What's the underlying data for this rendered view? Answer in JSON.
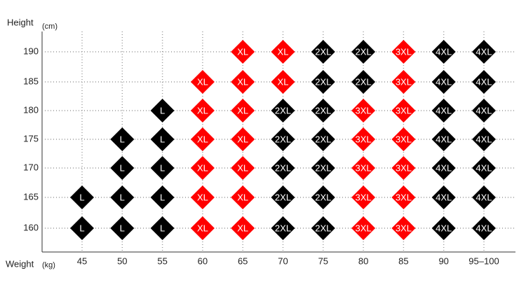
{
  "chart_data": {
    "type": "matrix",
    "y_label": "Height",
    "y_unit": "(cm)",
    "x_label": "Weight",
    "x_unit": "(kg)",
    "x": [
      "45",
      "50",
      "55",
      "60",
      "65",
      "70",
      "75",
      "80",
      "85",
      "90",
      "95–100"
    ],
    "y": [
      "190",
      "185",
      "180",
      "175",
      "170",
      "165",
      "160"
    ],
    "cells": [
      [
        null,
        null,
        null,
        null,
        "XL",
        "XL",
        "2XL",
        "2XL",
        "3XL",
        "4XL",
        "4XL"
      ],
      [
        null,
        null,
        null,
        "XL",
        "XL",
        "XL",
        "2XL",
        "2XL",
        "3XL",
        "4XL",
        "4XL"
      ],
      [
        null,
        null,
        "L",
        "XL",
        "XL",
        "2XL",
        "2XL",
        "3XL",
        "3XL",
        "4XL",
        "4XL"
      ],
      [
        null,
        "L",
        "L",
        "XL",
        "XL",
        "2XL",
        "2XL",
        "3XL",
        "3XL",
        "4XL",
        "4XL"
      ],
      [
        null,
        "L",
        "L",
        "XL",
        "XL",
        "2XL",
        "2XL",
        "3XL",
        "3XL",
        "4XL",
        "4XL"
      ],
      [
        "L",
        "L",
        "L",
        "XL",
        "XL",
        "2XL",
        "2XL",
        "3XL",
        "3XL",
        "4XL",
        "4XL"
      ],
      [
        "L",
        "L",
        "L",
        "XL",
        "XL",
        "2XL",
        "2XL",
        "3XL",
        "3XL",
        "4XL",
        "4XL"
      ]
    ],
    "colors": {
      "L": "#000000",
      "XL": "#ff0000",
      "2XL": "#000000",
      "3XL": "#ff0000",
      "4XL": "#000000"
    },
    "grid": true
  }
}
